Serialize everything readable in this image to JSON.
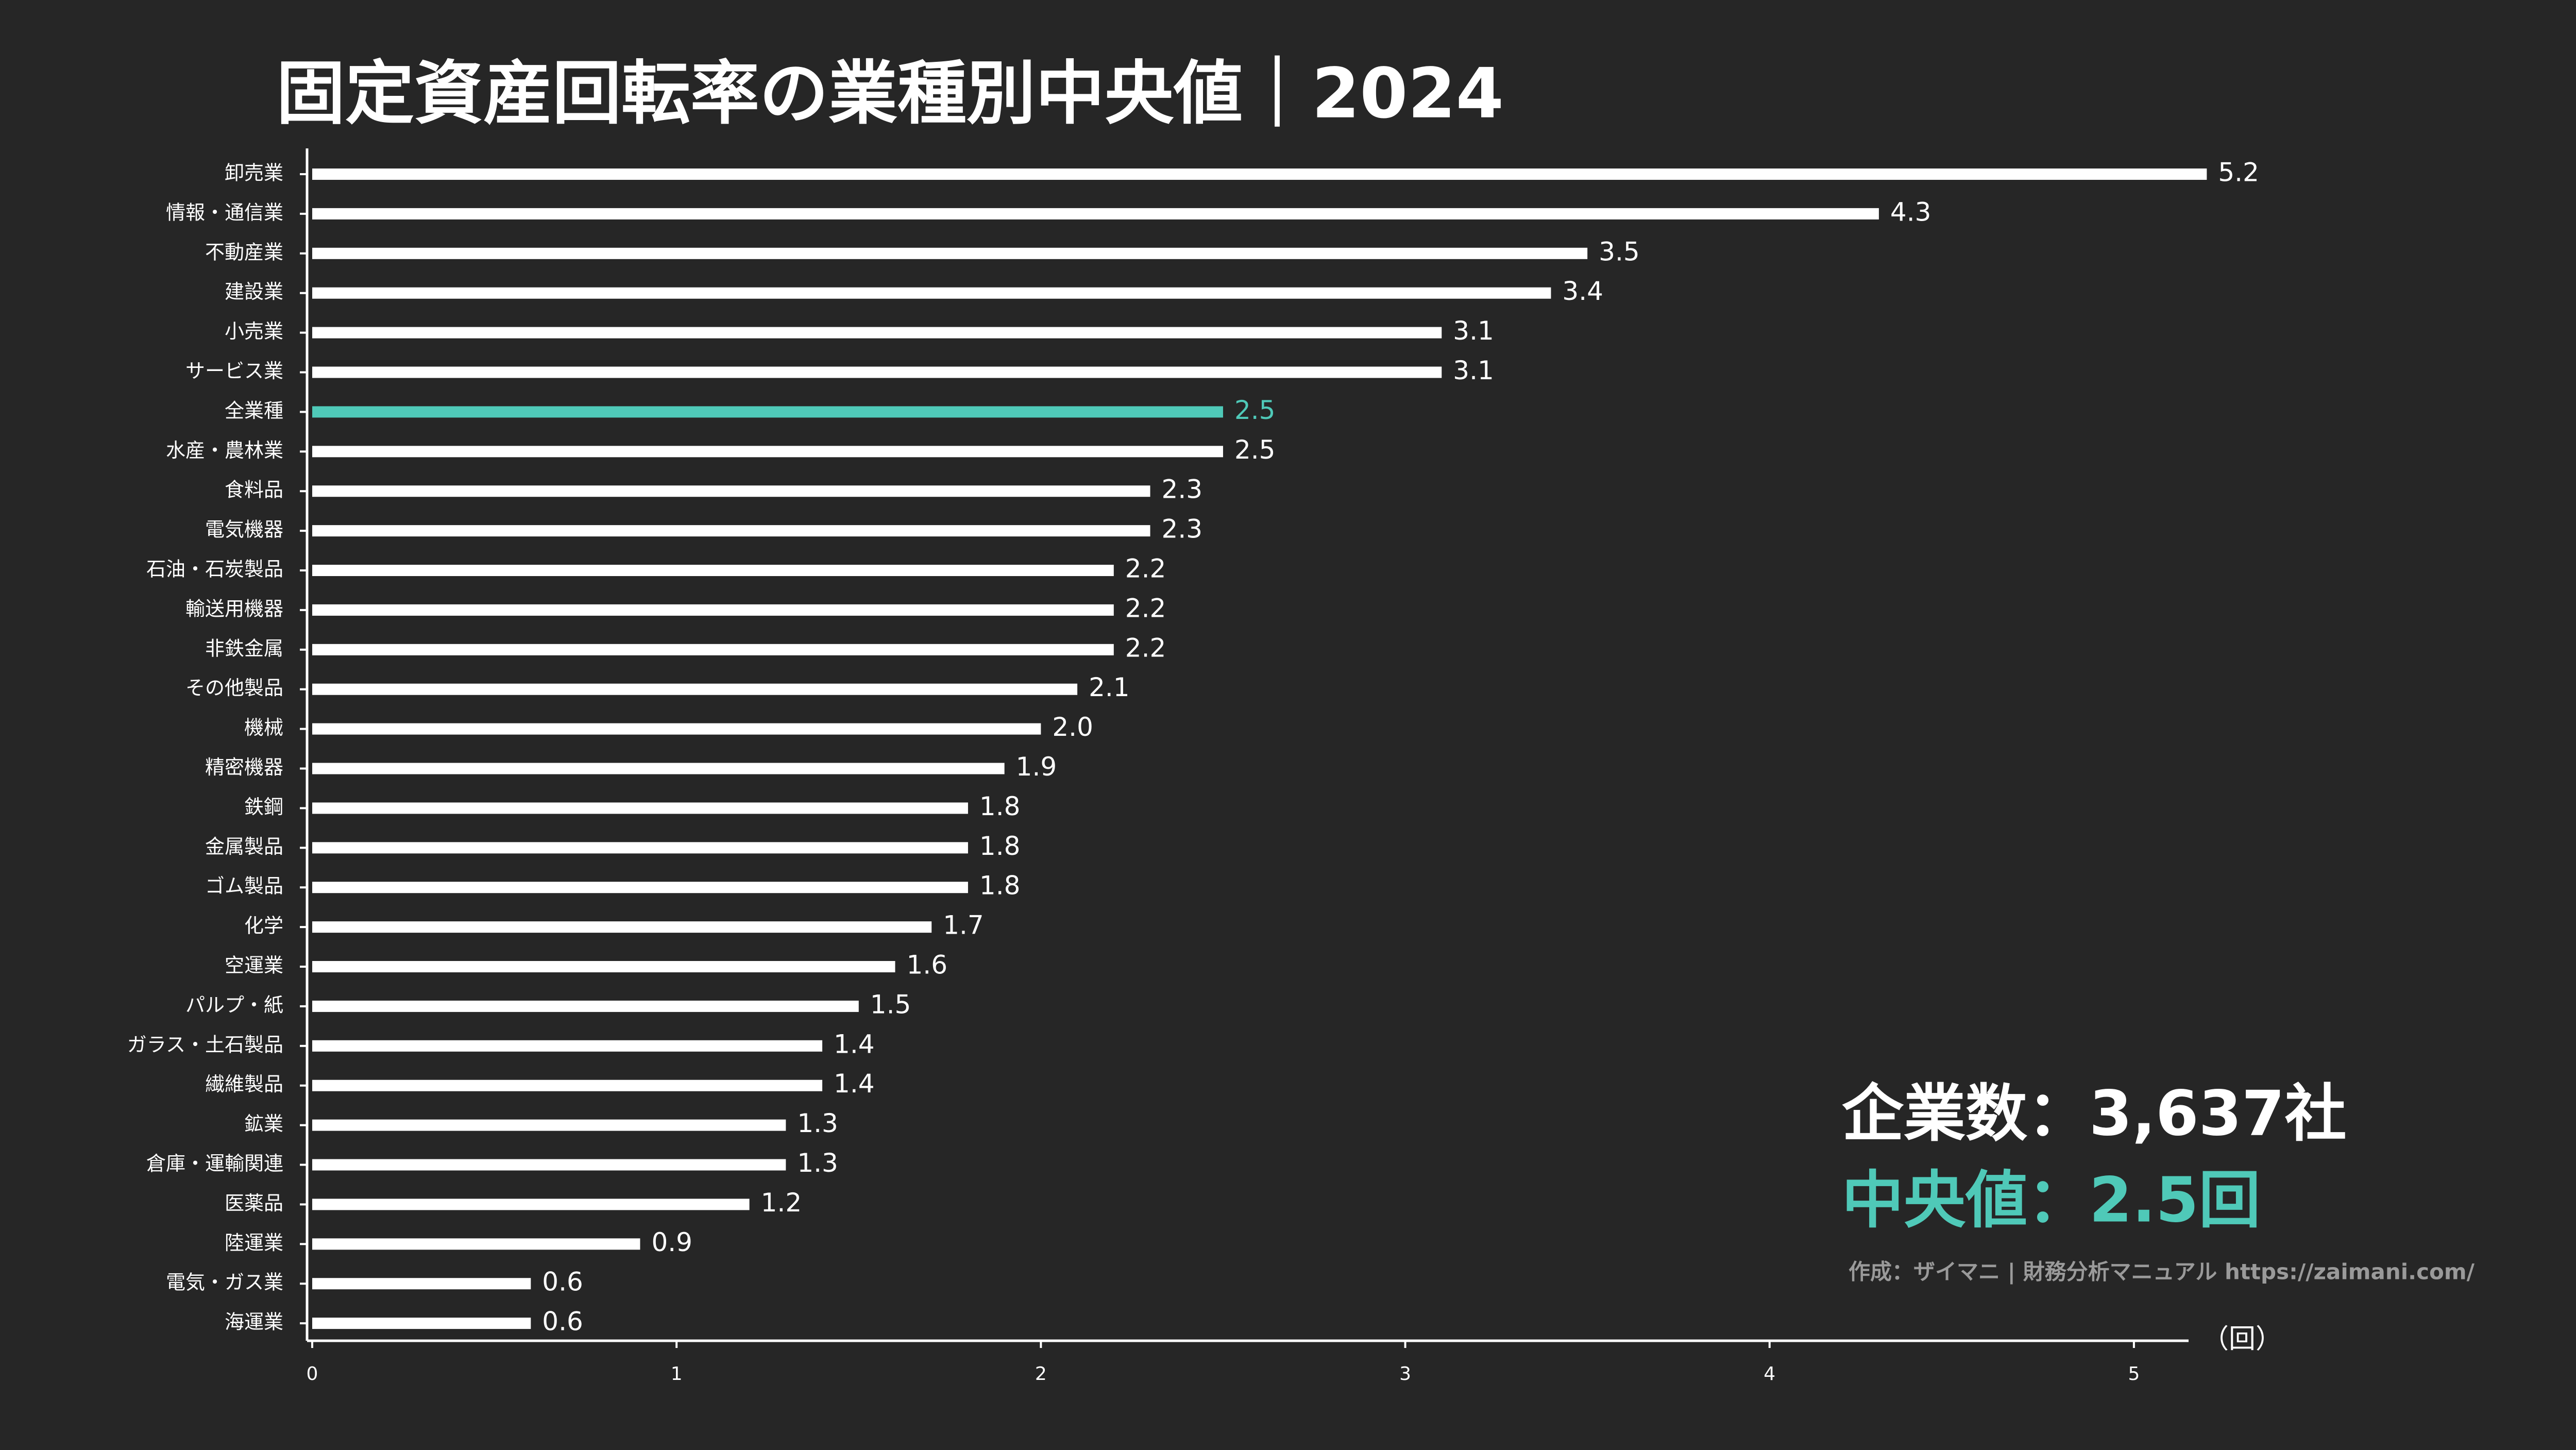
{
  "chart_data": {
    "type": "barh",
    "title": "固定資産回転率の業種別中央値｜2024",
    "categories": [
      "卸売業",
      "情報・通信業",
      "不動産業",
      "建設業",
      "小売業",
      "サービス業",
      "全業種",
      "水産・農林業",
      "食料品",
      "電気機器",
      "石油・石炭製品",
      "輸送用機器",
      "非鉄金属",
      "その他製品",
      "機械",
      "精密機器",
      "鉄鋼",
      "金属製品",
      "ゴム製品",
      "化学",
      "空運業",
      "パルプ・紙",
      "ガラス・土石製品",
      "繊維製品",
      "鉱業",
      "倉庫・運輸関連",
      "医薬品",
      "陸運業",
      "電気・ガス業",
      "海運業"
    ],
    "values": [
      5.2,
      4.3,
      3.5,
      3.4,
      3.1,
      3.1,
      2.5,
      2.5,
      2.3,
      2.3,
      2.2,
      2.2,
      2.2,
      2.1,
      2.0,
      1.9,
      1.8,
      1.8,
      1.8,
      1.7,
      1.6,
      1.5,
      1.4,
      1.4,
      1.3,
      1.3,
      1.2,
      0.9,
      0.6,
      0.6
    ],
    "value_labels": [
      "5.2",
      "4.3",
      "3.5",
      "3.4",
      "3.1",
      "3.1",
      "2.5",
      "2.5",
      "2.3",
      "2.3",
      "2.2",
      "2.2",
      "2.2",
      "2.1",
      "2.0",
      "1.9",
      "1.8",
      "1.8",
      "1.8",
      "1.7",
      "1.6",
      "1.5",
      "1.4",
      "1.4",
      "1.3",
      "1.3",
      "1.2",
      "0.9",
      "0.6",
      "0.6"
    ],
    "colors": [
      "#ffffff",
      "#ffffff",
      "#ffffff",
      "#ffffff",
      "#ffffff",
      "#ffffff",
      "#4fc9b8",
      "#ffffff",
      "#ffffff",
      "#ffffff",
      "#ffffff",
      "#ffffff",
      "#ffffff",
      "#ffffff",
      "#ffffff",
      "#ffffff",
      "#ffffff",
      "#ffffff",
      "#ffffff",
      "#ffffff",
      "#ffffff",
      "#ffffff",
      "#ffffff",
      "#ffffff",
      "#ffffff",
      "#ffffff",
      "#ffffff",
      "#ffffff",
      "#ffffff",
      "#ffffff"
    ],
    "xlim": [
      0,
      5.15
    ],
    "xticks": [
      0,
      1,
      2,
      3,
      4,
      5
    ],
    "x_label": "（回）",
    "annotations": [
      "企業数：3,637社",
      "中央値：2.5回",
      "作成：ザイマニ | 財務分析マニュアル https://zaimani.com/"
    ]
  }
}
